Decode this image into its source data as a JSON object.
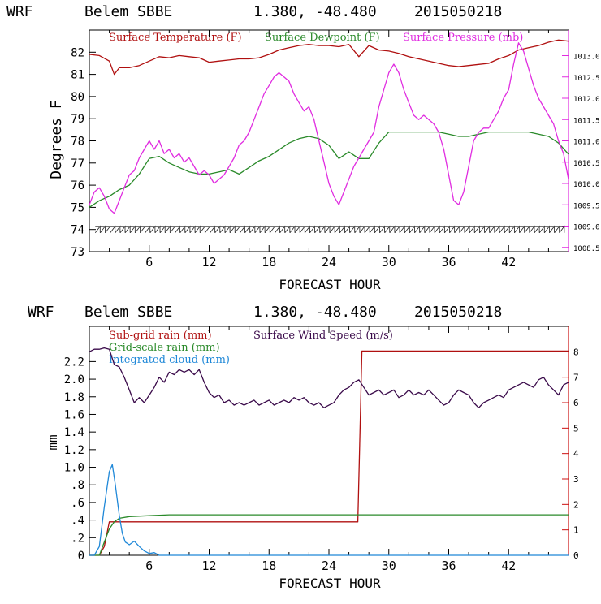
{
  "chart_data": [
    {
      "type": "line",
      "title": "WRF   Belem SBBE     1.380, -48.480  2015050218",
      "title_parts": {
        "model": "WRF",
        "station": "Belem SBBE",
        "coords": "1.380, -48.480",
        "init": "2015050218"
      },
      "xlabel": "FORECAST HOUR",
      "ylabel": "Degrees F",
      "xlim": [
        0,
        48
      ],
      "ylim": [
        73,
        83
      ],
      "y2lim": [
        1008.4,
        1013.6
      ],
      "x_ticks": [
        "6",
        "12",
        "18",
        "24",
        "30",
        "36",
        "42"
      ],
      "y_ticks": [
        "73",
        "74",
        "75",
        "76",
        "77",
        "78",
        "79",
        "80",
        "81",
        "82"
      ],
      "y2_ticks": [
        "1008.5",
        "1009.0",
        "1009.5",
        "1010.0",
        "1010.5",
        "1011.0",
        "1011.5",
        "1012.0",
        "1012.5",
        "1013.0"
      ],
      "series": [
        {
          "name": "Surface Temperature (F)",
          "color": "#b01010",
          "axis": "left",
          "x": [
            0,
            1,
            2,
            2.5,
            3,
            4,
            5,
            6,
            7,
            8,
            9,
            10,
            11,
            12,
            13,
            14,
            15,
            16,
            17,
            18,
            19,
            20,
            21,
            22,
            23,
            24,
            25,
            26,
            27,
            28,
            29,
            30,
            31,
            32,
            33,
            34,
            35,
            36,
            37,
            38,
            39,
            40,
            41,
            42,
            43,
            44,
            45,
            46,
            47,
            48
          ],
          "y": [
            81.9,
            81.85,
            81.6,
            81.0,
            81.3,
            81.3,
            81.4,
            81.6,
            81.8,
            81.75,
            81.85,
            81.8,
            81.75,
            81.55,
            81.6,
            81.65,
            81.7,
            81.7,
            81.75,
            81.9,
            82.1,
            82.2,
            82.3,
            82.35,
            82.3,
            82.3,
            82.25,
            82.35,
            81.8,
            82.3,
            82.1,
            82.05,
            81.95,
            81.8,
            81.7,
            81.6,
            81.5,
            81.4,
            81.35,
            81.4,
            81.45,
            81.5,
            81.7,
            81.85,
            82.1,
            82.2,
            82.3,
            82.45,
            82.55,
            82.5
          ]
        },
        {
          "name": "Surface Dewpoint (F)",
          "color": "#2a8a2a",
          "axis": "left",
          "x": [
            0,
            1,
            2,
            3,
            4,
            5,
            6,
            7,
            8,
            9,
            10,
            11,
            12,
            13,
            14,
            15,
            16,
            17,
            18,
            19,
            20,
            21,
            22,
            23,
            24,
            25,
            26,
            27,
            28,
            29,
            30,
            31,
            32,
            33,
            34,
            35,
            36,
            37,
            38,
            39,
            40,
            41,
            42,
            43,
            44,
            45,
            46,
            47,
            48
          ],
          "y": [
            75.0,
            75.3,
            75.5,
            75.8,
            76.0,
            76.5,
            77.2,
            77.3,
            77.0,
            76.8,
            76.6,
            76.5,
            76.5,
            76.6,
            76.7,
            76.5,
            76.8,
            77.1,
            77.3,
            77.6,
            77.9,
            78.1,
            78.2,
            78.1,
            77.8,
            77.2,
            77.5,
            77.2,
            77.2,
            77.9,
            78.4,
            78.4,
            78.4,
            78.4,
            78.4,
            78.4,
            78.3,
            78.2,
            78.2,
            78.3,
            78.4,
            78.4,
            78.4,
            78.4,
            78.4,
            78.3,
            78.2,
            77.9,
            77.4
          ]
        },
        {
          "name": "Surface Pressure (mb)",
          "color": "#e02ce0",
          "axis": "right",
          "x": [
            0,
            0.5,
            1,
            1.5,
            2,
            2.5,
            3,
            3.5,
            4,
            4.5,
            5,
            5.5,
            6,
            6.5,
            7,
            7.5,
            8,
            8.5,
            9,
            9.5,
            10,
            10.5,
            11,
            11.5,
            12,
            12.5,
            13,
            13.5,
            14,
            14.5,
            15,
            15.5,
            16,
            16.5,
            17,
            17.5,
            18,
            18.5,
            19,
            19.5,
            20,
            20.5,
            21,
            21.5,
            22,
            22.5,
            23,
            23.5,
            24,
            24.5,
            25,
            25.5,
            26,
            26.5,
            27,
            27.5,
            28,
            28.5,
            29,
            29.5,
            30,
            30.5,
            31,
            31.5,
            32,
            32.5,
            33,
            33.5,
            34,
            34.5,
            35,
            35.5,
            36,
            36.5,
            37,
            37.5,
            38,
            38.5,
            39,
            39.5,
            40,
            40.5,
            41,
            41.5,
            42,
            42.5,
            43,
            43.5,
            44,
            44.5,
            45,
            45.5,
            46,
            46.5,
            47,
            47.5,
            48
          ],
          "y": [
            1009.5,
            1009.8,
            1009.9,
            1009.7,
            1009.4,
            1009.3,
            1009.6,
            1009.9,
            1010.2,
            1010.3,
            1010.6,
            1010.8,
            1011.0,
            1010.8,
            1011.0,
            1010.7,
            1010.8,
            1010.6,
            1010.7,
            1010.5,
            1010.6,
            1010.4,
            1010.2,
            1010.3,
            1010.2,
            1010.0,
            1010.1,
            1010.2,
            1010.4,
            1010.6,
            1010.9,
            1011.0,
            1011.2,
            1011.5,
            1011.8,
            1012.1,
            1012.3,
            1012.5,
            1012.6,
            1012.5,
            1012.4,
            1012.1,
            1011.9,
            1011.7,
            1011.8,
            1011.5,
            1011.0,
            1010.5,
            1010.0,
            1009.7,
            1009.5,
            1009.8,
            1010.1,
            1010.4,
            1010.6,
            1010.8,
            1011.0,
            1011.2,
            1011.8,
            1012.2,
            1012.6,
            1012.8,
            1012.6,
            1012.2,
            1011.9,
            1011.6,
            1011.5,
            1011.6,
            1011.5,
            1011.4,
            1011.2,
            1010.8,
            1010.2,
            1009.6,
            1009.5,
            1009.8,
            1010.4,
            1011.0,
            1011.2,
            1011.3,
            1011.3,
            1011.5,
            1011.7,
            1012.0,
            1012.2,
            1012.8,
            1013.3,
            1013.1,
            1012.7,
            1012.3,
            1012.0,
            1011.8,
            1011.6,
            1011.4,
            1011.0,
            1010.7,
            1010.1
          ]
        }
      ],
      "sky_symbols_y": 74.0,
      "legend": [
        "Surface Temperature (F)",
        "Surface Dewpoint (F)",
        "Surface Pressure (mb)"
      ]
    },
    {
      "type": "line",
      "title": "WRF   Belem SBBE     1.380, -48.480  2015050218",
      "title_parts": {
        "model": "WRF",
        "station": "Belem SBBE",
        "coords": "1.380, -48.480",
        "init": "2015050218"
      },
      "xlabel": "FORECAST HOUR",
      "ylabel": "mm",
      "xlim": [
        0,
        48
      ],
      "ylim": [
        0,
        2.6
      ],
      "y2lim": [
        0,
        9
      ],
      "x_ticks": [
        "6",
        "12",
        "18",
        "24",
        "30",
        "36",
        "42"
      ],
      "y_ticks": [
        "0",
        ".2",
        ".4",
        ".6",
        ".8",
        "1.0",
        "1.2",
        "1.4",
        "1.6",
        "1.8",
        "2.0",
        "2.2"
      ],
      "y2_ticks": [
        "0",
        "1",
        "2",
        "3",
        "4",
        "5",
        "6",
        "7",
        "8"
      ],
      "series": [
        {
          "name": "Sub-grid rain (mm)",
          "color": "#b01010",
          "axis": "left",
          "x": [
            0,
            1,
            1.5,
            2,
            26.9,
            27.3,
            48
          ],
          "y": [
            0,
            0,
            0.1,
            0.38,
            0.38,
            2.32,
            2.32
          ]
        },
        {
          "name": "Grid-scale rain (mm)",
          "color": "#2a8a2a",
          "axis": "left",
          "x": [
            0,
            1,
            1.5,
            2,
            2.5,
            3,
            4,
            6,
            8,
            10,
            12,
            18,
            24,
            30,
            36,
            42,
            48
          ],
          "y": [
            0,
            0,
            0.15,
            0.3,
            0.38,
            0.42,
            0.44,
            0.45,
            0.46,
            0.46,
            0.46,
            0.46,
            0.46,
            0.46,
            0.46,
            0.46,
            0.46
          ]
        },
        {
          "name": "Integrated cloud (mm)",
          "color": "#1f88d8",
          "axis": "left",
          "x": [
            0,
            0.5,
            1,
            1.5,
            2,
            2.3,
            2.6,
            3,
            3.3,
            3.6,
            4,
            4.5,
            5,
            5.5,
            6,
            6.5,
            7,
            8,
            10,
            48
          ],
          "y": [
            0,
            0,
            0.1,
            0.55,
            0.95,
            1.03,
            0.8,
            0.45,
            0.25,
            0.15,
            0.12,
            0.16,
            0.1,
            0.05,
            0.02,
            0.03,
            0,
            0,
            0,
            0
          ]
        },
        {
          "name": "Surface Wind Speed (m/s)",
          "color": "#3a0a4a",
          "axis": "right",
          "x": [
            0,
            0.5,
            1,
            1.5,
            2,
            2.5,
            3,
            3.5,
            4,
            4.5,
            5,
            5.5,
            6,
            6.5,
            7,
            7.5,
            8,
            8.5,
            9,
            9.5,
            10,
            10.5,
            11,
            11.5,
            12,
            12.5,
            13,
            13.5,
            14,
            14.5,
            15,
            15.5,
            16,
            16.5,
            17,
            17.5,
            18,
            18.5,
            19,
            19.5,
            20,
            20.5,
            21,
            21.5,
            22,
            22.5,
            23,
            23.5,
            24,
            24.5,
            25,
            25.5,
            26,
            26.5,
            27,
            27.5,
            28,
            28.5,
            29,
            29.5,
            30,
            30.5,
            31,
            31.5,
            32,
            32.5,
            33,
            33.5,
            34,
            34.5,
            35,
            35.5,
            36,
            36.5,
            37,
            37.5,
            38,
            38.5,
            39,
            39.5,
            40,
            40.5,
            41,
            41.5,
            42,
            42.5,
            43,
            43.5,
            44,
            44.5,
            45,
            45.5,
            46,
            46.5,
            47,
            47.5,
            48
          ],
          "y": [
            8.0,
            8.1,
            8.1,
            8.15,
            8.1,
            7.5,
            7.4,
            7.0,
            6.5,
            6.0,
            6.2,
            6.0,
            6.3,
            6.6,
            7.0,
            6.8,
            7.2,
            7.1,
            7.3,
            7.2,
            7.3,
            7.1,
            7.3,
            6.8,
            6.4,
            6.2,
            6.3,
            6.0,
            6.1,
            5.9,
            6.0,
            5.9,
            6.0,
            6.1,
            5.9,
            6.0,
            6.1,
            5.9,
            6.0,
            6.1,
            6.0,
            6.2,
            6.1,
            6.2,
            6.0,
            5.9,
            6.0,
            5.8,
            5.9,
            6.0,
            6.3,
            6.5,
            6.6,
            6.8,
            6.9,
            6.6,
            6.3,
            6.4,
            6.5,
            6.3,
            6.4,
            6.5,
            6.2,
            6.3,
            6.5,
            6.3,
            6.4,
            6.3,
            6.5,
            6.3,
            6.1,
            5.9,
            6.0,
            6.3,
            6.5,
            6.4,
            6.3,
            6.0,
            5.8,
            6.0,
            6.1,
            6.2,
            6.3,
            6.2,
            6.5,
            6.6,
            6.7,
            6.8,
            6.7,
            6.6,
            6.9,
            7.0,
            6.7,
            6.5,
            6.3,
            6.7,
            6.8
          ]
        }
      ],
      "legend": [
        "Sub-grid rain (mm)",
        "Grid-scale rain (mm)",
        "Integrated cloud (mm)",
        "Surface Wind Speed (m/s)"
      ]
    }
  ]
}
